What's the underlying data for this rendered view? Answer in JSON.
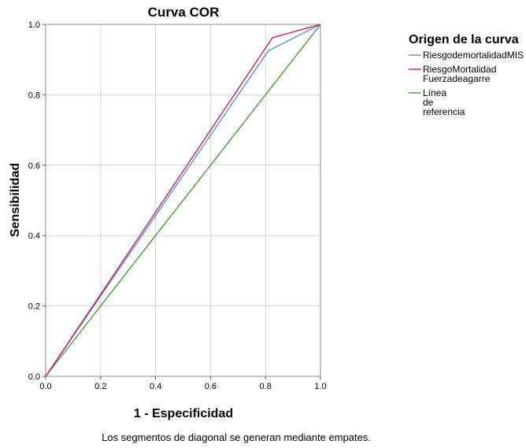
{
  "chart_data": {
    "type": "line",
    "title": "Curva COR",
    "xlabel": "1 - Especificidad",
    "ylabel": "Sensibilidad",
    "xlim": [
      0,
      1
    ],
    "ylim": [
      0,
      1
    ],
    "xticks": [
      "0.0",
      "0.2",
      "0.4",
      "0.6",
      "0.8",
      "1.0"
    ],
    "yticks": [
      "0.0",
      "0.2",
      "0.4",
      "0.6",
      "0.8",
      "1.0"
    ],
    "grid": true,
    "legend_title": "Origen de la curva",
    "legend_position": "right",
    "series": [
      {
        "name": "RiesgodemortalidadMIS",
        "color": "#5b8fd6",
        "x": [
          0,
          0.81,
          1.0
        ],
        "y": [
          0,
          0.925,
          1.0
        ]
      },
      {
        "name": "RiesgoMortalidad Fuerzadeagarre",
        "color": "#cc1f5a",
        "x": [
          0,
          0.825,
          1.0
        ],
        "y": [
          0,
          0.962,
          1.0
        ]
      },
      {
        "name": "Línea de referencia",
        "color": "#4a9a3a",
        "x": [
          0,
          1.0
        ],
        "y": [
          0,
          1.0
        ]
      }
    ],
    "footnote": "Los segmentos de diagonal se generan mediante empates."
  }
}
